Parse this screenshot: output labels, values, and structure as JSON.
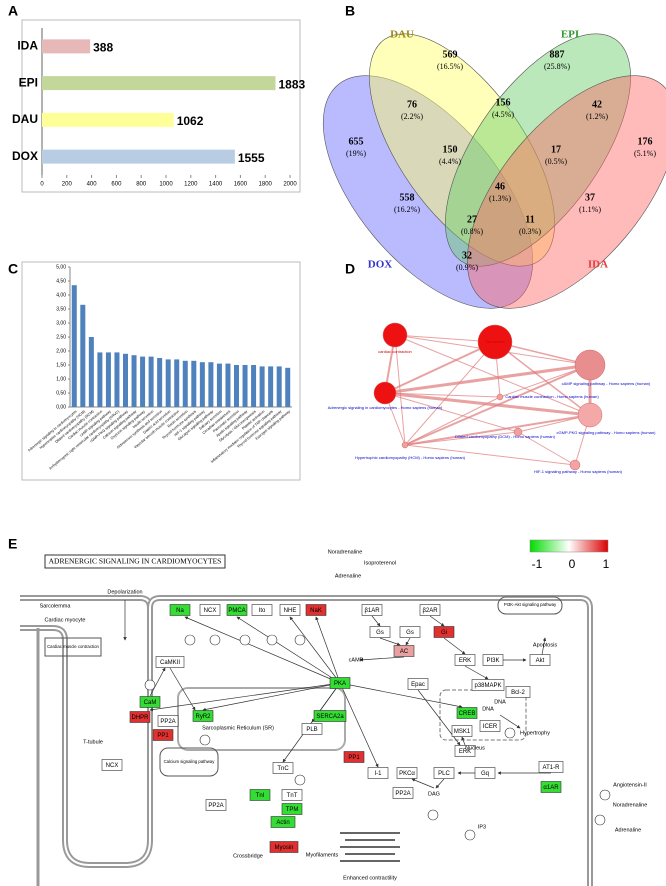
{
  "panel_labels": [
    "A",
    "B",
    "C",
    "D",
    "E"
  ],
  "chart_data": [
    {
      "type": "hbar",
      "categories": [
        "IDA",
        "EPI",
        "DAU",
        "DOX"
      ],
      "values": [
        388,
        1883,
        1062,
        1555
      ],
      "colors": [
        "#e6b8b7",
        "#c4d79b",
        "#ffff99",
        "#b8cce4"
      ],
      "xlim": [
        0,
        2000
      ],
      "xticks": [
        0,
        200,
        400,
        600,
        800,
        1000,
        1200,
        1400,
        1600,
        1800,
        2000
      ]
    },
    {
      "type": "bar",
      "categories": [
        "Adrenergic signaling in cardiomyocytes",
        "Hypertrophic cardiomyopathy (HCM)",
        "Dilated cardiomyopathy (DCM)",
        "Cardiac muscle contraction",
        "cAMP signaling pathway",
        "Arrhythmogenic right ventricular cardiomyopathy (ARVC)",
        "cGMP-PKG signaling pathway",
        "Calcium signaling pathway",
        "Oxytocin signaling pathway",
        "Insulin secretion",
        "Aldosterone synthesis and secretion",
        "Gastric acid secretion",
        "Vascular smooth muscle contraction",
        "Renin secretion",
        "Thyroid hormone synthesis",
        "HIF-1 signaling pathway",
        "Glucagon signaling pathway",
        "Salivary secretion",
        "Circadian entrainment",
        "Pancreatic secretion",
        "Apelin signaling pathway",
        "Glycolysis / Gluconeogenesis",
        "Platelet activation",
        "Inflammatory mediator regulation of TRP channels",
        "Thyroid hormone signaling pathway",
        "Estrogen signaling pathway"
      ],
      "values": [
        4.35,
        3.65,
        2.5,
        1.95,
        1.95,
        1.95,
        1.9,
        1.85,
        1.8,
        1.8,
        1.75,
        1.7,
        1.7,
        1.65,
        1.65,
        1.6,
        1.6,
        1.55,
        1.55,
        1.5,
        1.5,
        1.5,
        1.45,
        1.45,
        1.45,
        1.4
      ],
      "color": "#4f81bd",
      "ylim": [
        0,
        5
      ],
      "yticks": [
        {
          "value": 0,
          "label": "0,00"
        },
        {
          "value": 0.5,
          "label": "0,50"
        },
        {
          "value": 1,
          "label": "1,00"
        },
        {
          "value": 1.5,
          "label": "1,50"
        },
        {
          "value": 2,
          "label": "2,00"
        },
        {
          "value": 2.5,
          "label": "2,50"
        },
        {
          "value": 3,
          "label": "3,00"
        },
        {
          "value": 3.5,
          "label": "3,50"
        },
        {
          "value": 4,
          "label": "4,00"
        },
        {
          "value": 4.5,
          "label": "4,50"
        },
        {
          "value": 5,
          "label": "5,00"
        }
      ]
    }
  ],
  "venn": {
    "sets": [
      {
        "name": "DOX",
        "color": "#6666ff",
        "text_color": "#3333cc"
      },
      {
        "name": "DAU",
        "color": "#ffff66",
        "text_color": "#9c8a1a"
      },
      {
        "name": "EPI",
        "color": "#66cc66",
        "text_color": "#2e9a2e"
      },
      {
        "name": "IDA",
        "color": "#ff6666",
        "text_color": "#e34040"
      }
    ],
    "regions": [
      {
        "count": 569,
        "percent": "(16.5%)"
      },
      {
        "count": 887,
        "percent": "(25.8%)"
      },
      {
        "count": 655,
        "percent": "(19%)"
      },
      {
        "count": 76,
        "percent": "(2.2%)"
      },
      {
        "count": 156,
        "percent": "(4.5%)"
      },
      {
        "count": 42,
        "percent": "(1.2%)"
      },
      {
        "count": 176,
        "percent": "(5.1%)"
      },
      {
        "count": 150,
        "percent": "(4.4%)"
      },
      {
        "count": 17,
        "percent": "(0.5%)"
      },
      {
        "count": 46,
        "percent": "(1.3%)"
      },
      {
        "count": 558,
        "percent": "(16.2%)"
      },
      {
        "count": 37,
        "percent": "(1.1%)"
      },
      {
        "count": 27,
        "percent": "(0.8%)"
      },
      {
        "count": 11,
        "percent": "(0.3%)"
      },
      {
        "count": 32,
        "percent": "(0.9%)"
      }
    ]
  },
  "network": {
    "nodes": [
      {
        "label": "cardiac contraction",
        "color": "#ee1111",
        "label_color": "#cc0000"
      },
      {
        "label": "Sarcomere",
        "color": "#ee1111",
        "label_color": "#cc0000"
      },
      {
        "label": "Adrenergic signaling in cardiomyocytes - Homo sapiens (human)",
        "color": "#ee1111",
        "label_color": "#0000cc"
      },
      {
        "label": "cAMP signaling pathway - Homo sapiens (human)",
        "color": "#e88e8e",
        "label_color": "#0000cc"
      },
      {
        "label": "Cardiac muscle contraction - Homo sapiens (human)",
        "color": "#f0a0a0",
        "label_color": "#0000cc"
      },
      {
        "label": "cGMP-PKG signaling pathway - Homo sapiens (human)",
        "color": "#f5a8a8",
        "label_color": "#0000cc"
      },
      {
        "label": "Dilated cardiomyopathy (DCM) - Homo sapiens (human)",
        "color": "#f0a0a0",
        "label_color": "#0000cc"
      },
      {
        "label": "Hypertrophic cardiomyopathy (HCM) - Homo sapiens (human)",
        "color": "#f0a0a0",
        "label_color": "#0000cc"
      },
      {
        "label": "HIF-1 signaling pathway - Homo sapiens (human)",
        "color": "#f3a3a3",
        "label_color": "#0000cc"
      }
    ]
  },
  "pathway": {
    "title": "ADRENERGIC SIGNALING IN CARDIOMYOCYTES",
    "legend": {
      "ticks": [
        "-1",
        "0",
        "1"
      ],
      "colors": [
        "#00dd00",
        "#ffffff",
        "#dd0000"
      ]
    },
    "nodes": [
      {
        "label": "Na",
        "color": "#33dd33"
      },
      {
        "label": "NCX",
        "color": "#ffffff"
      },
      {
        "label": "PMCA",
        "color": "#33dd33"
      },
      {
        "label": "Ito",
        "color": "#ffffff"
      },
      {
        "label": "NHE",
        "color": "#ffffff"
      },
      {
        "label": "NaK",
        "color": "#e03030"
      },
      {
        "label": "β1AR",
        "color": "#ffffff"
      },
      {
        "label": "β2AR",
        "color": "#ffffff"
      },
      {
        "label": "Gs",
        "color": "#ffffff"
      },
      {
        "label": "Gs",
        "color": "#ffffff"
      },
      {
        "label": "Gi",
        "color": "#e03030"
      },
      {
        "label": "AC",
        "color": "#e8a0a0"
      },
      {
        "label": "ERK",
        "color": "#ffffff"
      },
      {
        "label": "PI3K",
        "color": "#ffffff"
      },
      {
        "label": "Akt",
        "color": "#ffffff"
      },
      {
        "label": "PKA",
        "color": "#33dd33"
      },
      {
        "label": "Epac",
        "color": "#ffffff"
      },
      {
        "label": "p38MAPK",
        "color": "#ffffff"
      },
      {
        "label": "Bcl-2",
        "color": "#ffffff"
      },
      {
        "label": "CaMKII",
        "color": "#ffffff"
      },
      {
        "label": "CaM",
        "color": "#33dd33"
      },
      {
        "label": "DHPR",
        "color": "#e03030"
      },
      {
        "label": "RyR2",
        "color": "#33dd33"
      },
      {
        "label": "PP2A",
        "color": "#ffffff"
      },
      {
        "label": "PP1",
        "color": "#e03030"
      },
      {
        "label": "SERCA2a",
        "color": "#33dd33"
      },
      {
        "label": "PLB",
        "color": "#ffffff"
      },
      {
        "label": "CREB",
        "color": "#33dd33"
      },
      {
        "label": "MSK1",
        "color": "#ffffff"
      },
      {
        "label": "ICER",
        "color": "#ffffff"
      },
      {
        "label": "ERK",
        "color": "#ffffff"
      },
      {
        "label": "PP1",
        "color": "#e03030"
      },
      {
        "label": "I-1",
        "color": "#ffffff"
      },
      {
        "label": "PKCα",
        "color": "#ffffff"
      },
      {
        "label": "PLC",
        "color": "#ffffff"
      },
      {
        "label": "Gq",
        "color": "#ffffff"
      },
      {
        "label": "AT1-R",
        "color": "#ffffff"
      },
      {
        "label": "α1AR",
        "color": "#33dd33"
      },
      {
        "label": "TnC",
        "color": "#ffffff"
      },
      {
        "label": "TnI",
        "color": "#33dd33"
      },
      {
        "label": "TnT",
        "color": "#ffffff"
      },
      {
        "label": "TPM",
        "color": "#33dd33"
      },
      {
        "label": "Actin",
        "color": "#33dd33"
      },
      {
        "label": "Myosin",
        "color": "#e03030"
      },
      {
        "label": "PP2A",
        "color": "#ffffff"
      },
      {
        "label": "PP2A",
        "color": "#ffffff"
      },
      {
        "label": "NCX",
        "color": "#ffffff"
      }
    ],
    "labels": [
      "Depolarization",
      "Sarcolemma",
      "Cardiac myocyte",
      "Cardiac muscle contraction",
      "T-tubule",
      "Sarcoplasmic Reticulum (SR)",
      "Calcium signaling pathway",
      "Myofilaments",
      "Crossbridge",
      "Enhanced contractility",
      "Nucleus",
      "PI3K-Akt signaling pathway",
      "Noradrenaline",
      "Isoproterenol",
      "Adrenaline",
      "Angiotensin-II",
      "Noradrenaline",
      "Adrenaline",
      "Apoptosis",
      "Hypertrophy",
      "DNA",
      "DNA",
      "cAMP",
      "DAG",
      "IP3"
    ]
  }
}
